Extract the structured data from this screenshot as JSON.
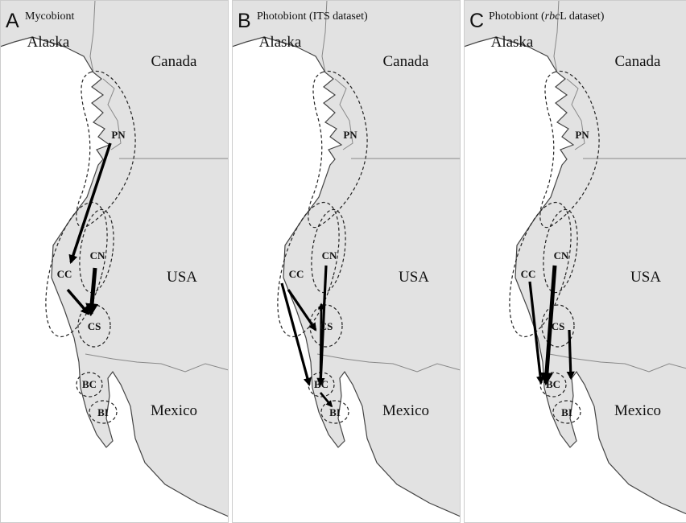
{
  "map": {
    "places": {
      "alaska": "Alaska",
      "canada": "Canada",
      "usa": "USA",
      "mexico": "Mexico"
    },
    "regions": {
      "pn": "PN",
      "cc": "CC",
      "cn": "CN",
      "cs": "CS",
      "bc": "BC",
      "bi": "BI"
    }
  },
  "panels": [
    {
      "letter": "A",
      "title": [
        {
          "text": "Mycobiont"
        }
      ]
    },
    {
      "letter": "B",
      "title": [
        {
          "text": "Photobiont (ITS dataset)"
        }
      ]
    },
    {
      "letter": "C",
      "title": [
        {
          "text": "Photobiont ("
        },
        {
          "text": "rbc",
          "italic": true
        },
        {
          "text": "L dataset)"
        }
      ]
    }
  ]
}
